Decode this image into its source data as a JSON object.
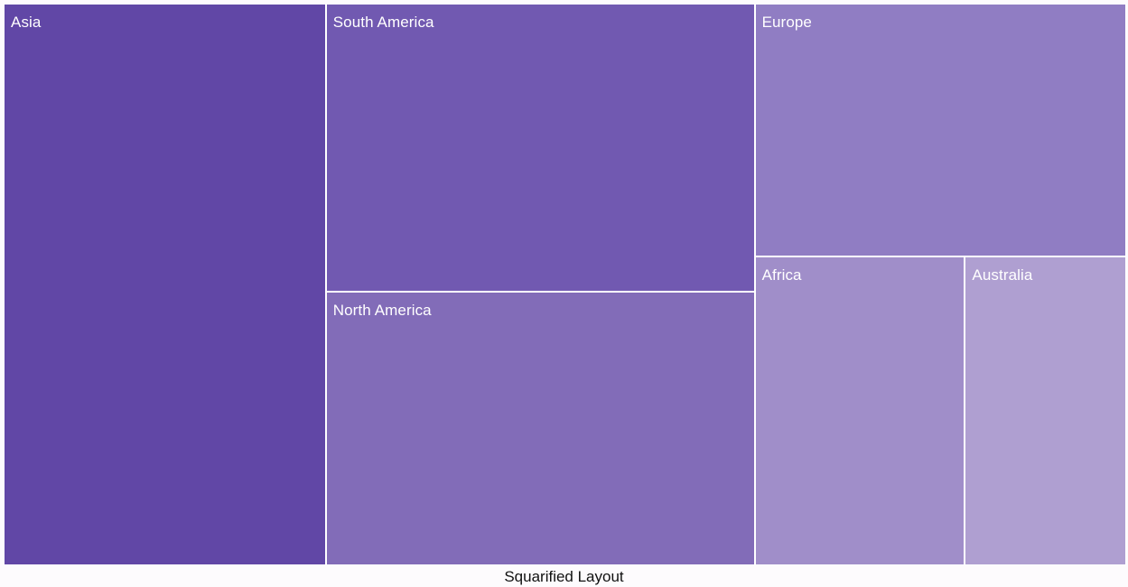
{
  "chart_data": {
    "type": "treemap",
    "layout_caption": "Squarified Layout",
    "items": [
      {
        "label": "Asia",
        "value": 28.7,
        "color": "#6147a6"
      },
      {
        "label": "South America",
        "value": 19.6,
        "color": "#7159b1"
      },
      {
        "label": "North America",
        "value": 18.6,
        "color": "#826cb8"
      },
      {
        "label": "Europe",
        "value": 14.9,
        "color": "#907dc3"
      },
      {
        "label": "Africa",
        "value": 10.3,
        "color": "#a08ec9"
      },
      {
        "label": "Australia",
        "value": 7.9,
        "color": "#af9fd1"
      }
    ]
  }
}
